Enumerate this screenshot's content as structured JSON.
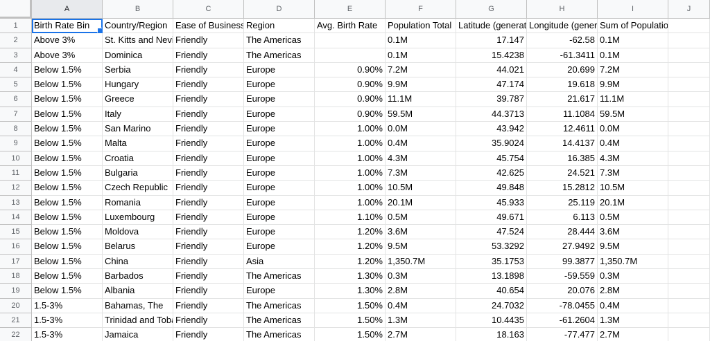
{
  "columns": [
    "A",
    "B",
    "C",
    "D",
    "E",
    "F",
    "G",
    "H",
    "I",
    "J"
  ],
  "rows": [
    {
      "n": "1",
      "a": "Birth Rate Bin",
      "b": "Country/Region",
      "c": "Ease of Business",
      "d": "Region",
      "e": "Avg. Birth Rate",
      "f": "Population Total",
      "g": "Latitude (generated)",
      "h": "Longitude (generated)",
      "i": "Sum of Population Total"
    },
    {
      "n": "2",
      "a": "Above 3%",
      "b": "St. Kitts and Nevis",
      "c": "Friendly",
      "d": "The Americas",
      "e": "",
      "f": "0.1M",
      "g": "17.147",
      "h": "-62.58",
      "i": "0.1M"
    },
    {
      "n": "3",
      "a": "Above 3%",
      "b": "Dominica",
      "c": "Friendly",
      "d": "The Americas",
      "e": "",
      "f": "0.1M",
      "g": "15.4238",
      "h": "-61.3411",
      "i": "0.1M"
    },
    {
      "n": "4",
      "a": "Below 1.5%",
      "b": "Serbia",
      "c": "Friendly",
      "d": "Europe",
      "e": "0.90%",
      "f": "7.2M",
      "g": "44.021",
      "h": "20.699",
      "i": "7.2M"
    },
    {
      "n": "5",
      "a": "Below 1.5%",
      "b": "Hungary",
      "c": "Friendly",
      "d": "Europe",
      "e": "0.90%",
      "f": "9.9M",
      "g": "47.174",
      "h": "19.618",
      "i": "9.9M"
    },
    {
      "n": "6",
      "a": "Below 1.5%",
      "b": "Greece",
      "c": "Friendly",
      "d": "Europe",
      "e": "0.90%",
      "f": "11.1M",
      "g": "39.787",
      "h": "21.617",
      "i": "11.1M"
    },
    {
      "n": "7",
      "a": "Below 1.5%",
      "b": "Italy",
      "c": "Friendly",
      "d": "Europe",
      "e": "0.90%",
      "f": "59.5M",
      "g": "44.3713",
      "h": "11.1084",
      "i": "59.5M"
    },
    {
      "n": "8",
      "a": "Below 1.5%",
      "b": "San Marino",
      "c": "Friendly",
      "d": "Europe",
      "e": "1.00%",
      "f": "0.0M",
      "g": "43.942",
      "h": "12.4611",
      "i": "0.0M"
    },
    {
      "n": "9",
      "a": "Below 1.5%",
      "b": "Malta",
      "c": "Friendly",
      "d": "Europe",
      "e": "1.00%",
      "f": "0.4M",
      "g": "35.9024",
      "h": "14.4137",
      "i": "0.4M"
    },
    {
      "n": "10",
      "a": "Below 1.5%",
      "b": "Croatia",
      "c": "Friendly",
      "d": "Europe",
      "e": "1.00%",
      "f": "4.3M",
      "g": "45.754",
      "h": "16.385",
      "i": "4.3M"
    },
    {
      "n": "11",
      "a": "Below 1.5%",
      "b": "Bulgaria",
      "c": "Friendly",
      "d": "Europe",
      "e": "1.00%",
      "f": "7.3M",
      "g": "42.625",
      "h": "24.521",
      "i": "7.3M"
    },
    {
      "n": "12",
      "a": "Below 1.5%",
      "b": "Czech Republic",
      "c": "Friendly",
      "d": "Europe",
      "e": "1.00%",
      "f": "10.5M",
      "g": "49.848",
      "h": "15.2812",
      "i": "10.5M"
    },
    {
      "n": "13",
      "a": "Below 1.5%",
      "b": "Romania",
      "c": "Friendly",
      "d": "Europe",
      "e": "1.00%",
      "f": "20.1M",
      "g": "45.933",
      "h": "25.119",
      "i": "20.1M"
    },
    {
      "n": "14",
      "a": "Below 1.5%",
      "b": "Luxembourg",
      "c": "Friendly",
      "d": "Europe",
      "e": "1.10%",
      "f": "0.5M",
      "g": "49.671",
      "h": "6.113",
      "i": "0.5M"
    },
    {
      "n": "15",
      "a": "Below 1.5%",
      "b": "Moldova",
      "c": "Friendly",
      "d": "Europe",
      "e": "1.20%",
      "f": "3.6M",
      "g": "47.524",
      "h": "28.444",
      "i": "3.6M"
    },
    {
      "n": "16",
      "a": "Below 1.5%",
      "b": "Belarus",
      "c": "Friendly",
      "d": "Europe",
      "e": "1.20%",
      "f": "9.5M",
      "g": "53.3292",
      "h": "27.9492",
      "i": "9.5M"
    },
    {
      "n": "17",
      "a": "Below 1.5%",
      "b": "China",
      "c": "Friendly",
      "d": "Asia",
      "e": "1.20%",
      "f": "1,350.7M",
      "g": "35.1753",
      "h": "99.3877",
      "i": "1,350.7M"
    },
    {
      "n": "18",
      "a": "Below 1.5%",
      "b": "Barbados",
      "c": "Friendly",
      "d": "The Americas",
      "e": "1.30%",
      "f": "0.3M",
      "g": "13.1898",
      "h": "-59.559",
      "i": "0.3M"
    },
    {
      "n": "19",
      "a": "Below 1.5%",
      "b": "Albania",
      "c": "Friendly",
      "d": "Europe",
      "e": "1.30%",
      "f": "2.8M",
      "g": "40.654",
      "h": "20.076",
      "i": "2.8M"
    },
    {
      "n": "20",
      "a": "1.5-3%",
      "b": "Bahamas, The",
      "c": "Friendly",
      "d": "The Americas",
      "e": "1.50%",
      "f": "0.4M",
      "g": "24.7032",
      "h": "-78.0455",
      "i": "0.4M"
    },
    {
      "n": "21",
      "a": "1.5-3%",
      "b": "Trinidad and Tobago",
      "c": "Friendly",
      "d": "The Americas",
      "e": "1.50%",
      "f": "1.3M",
      "g": "10.4435",
      "h": "-61.2604",
      "i": "1.3M"
    },
    {
      "n": "22",
      "a": "1.5-3%",
      "b": "Jamaica",
      "c": "Friendly",
      "d": "The Americas",
      "e": "1.50%",
      "f": "2.7M",
      "g": "18.163",
      "h": "-77.477",
      "i": "2.7M"
    }
  ]
}
